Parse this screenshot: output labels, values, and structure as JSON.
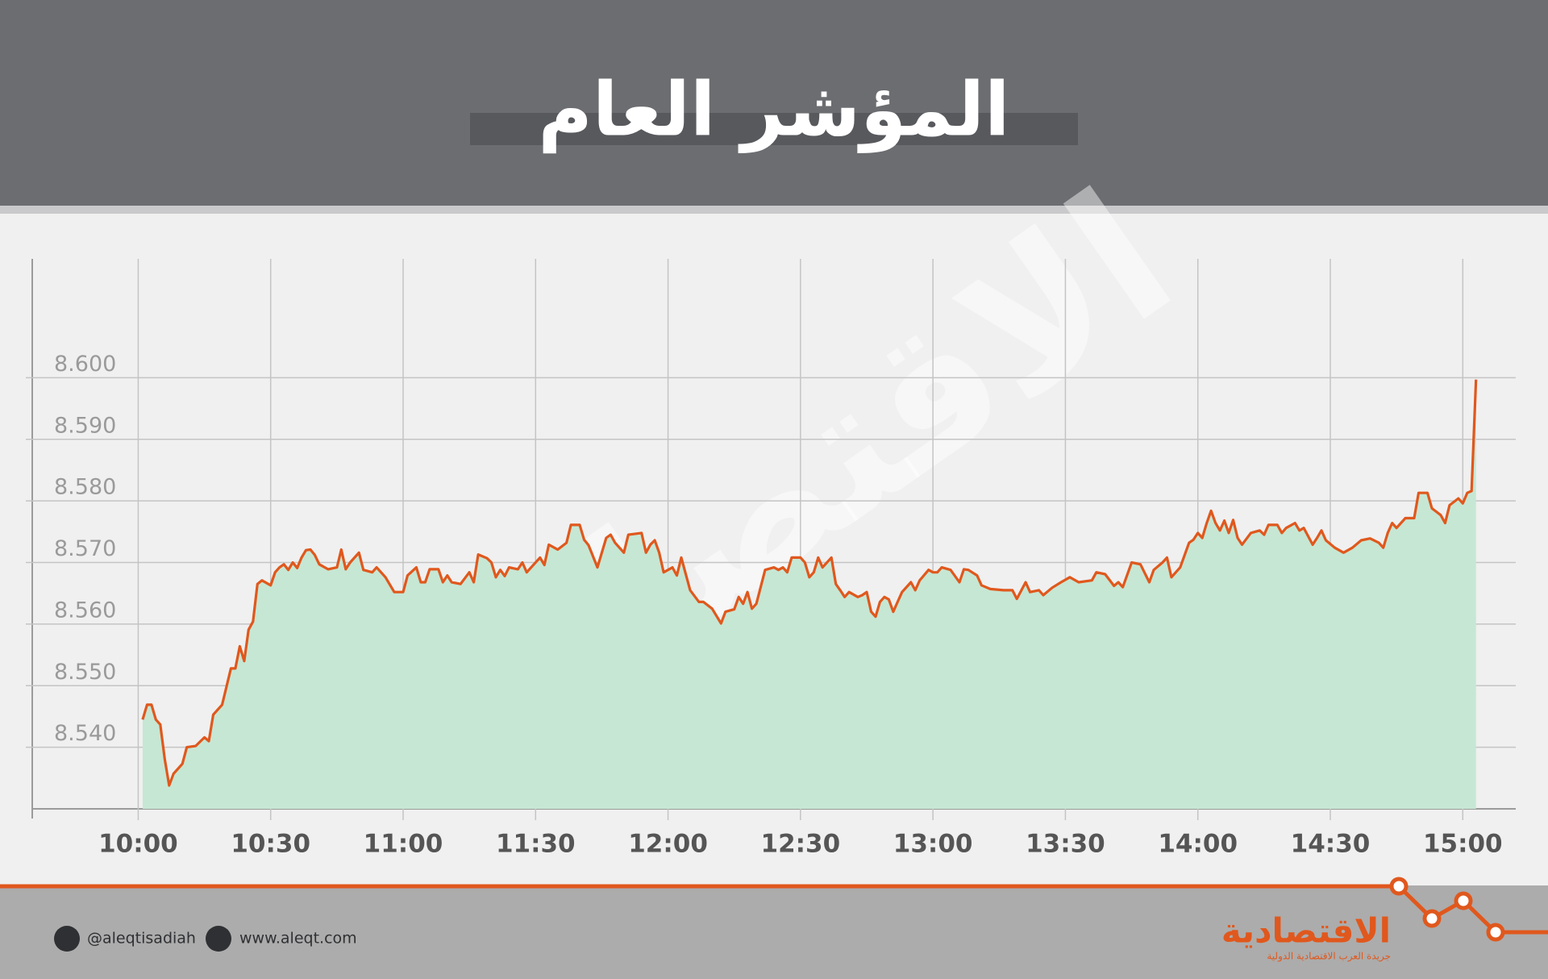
{
  "chart_data": {
    "type": "area",
    "title": "المؤشر العام",
    "color": "#e0581d",
    "fill": "#c6e7d4",
    "grid": true,
    "xlim": [
      "09:36",
      "15:12"
    ],
    "xticks": [
      "10:00",
      "10:30",
      "11:00",
      "11:30",
      "12:00",
      "12:30",
      "13:00",
      "13:30",
      "14:00",
      "14:30",
      "15:00"
    ],
    "ylim": [
      8.53,
      8.6193
    ],
    "yticks": [
      {
        "value": 8.54,
        "label": "8.540"
      },
      {
        "value": 8.55,
        "label": "8.550"
      },
      {
        "value": 8.56,
        "label": "8.560"
      },
      {
        "value": 8.57,
        "label": "8.570"
      },
      {
        "value": 8.58,
        "label": "8.580"
      },
      {
        "value": 8.59,
        "label": "8.590"
      },
      {
        "value": 8.6,
        "label": "8.600"
      }
    ],
    "x": [
      "10:01",
      "10:02",
      "10:03",
      "10:04",
      "10:05",
      "10:06",
      "10:07",
      "10:08",
      "10:10",
      "10:11",
      "10:13",
      "10:15",
      "10:16",
      "10:17",
      "10:19",
      "10:21",
      "10:22",
      "10:23",
      "10:24",
      "10:25",
      "10:26",
      "10:27",
      "10:28",
      "10:30",
      "10:31",
      "10:32",
      "10:33",
      "10:34",
      "10:35",
      "10:36",
      "10:37",
      "10:38",
      "10:39",
      "10:40",
      "10:41",
      "10:43",
      "10:45",
      "10:46",
      "10:47",
      "10:48",
      "10:50",
      "10:51",
      "10:53",
      "10:54",
      "10:56",
      "10:58",
      "11:00",
      "11:01",
      "11:03",
      "11:04",
      "11:05",
      "11:06",
      "11:08",
      "11:09",
      "11:10",
      "11:11",
      "11:13",
      "11:15",
      "11:16",
      "11:17",
      "11:19",
      "11:20",
      "11:21",
      "11:22",
      "11:23",
      "11:24",
      "11:26",
      "11:27",
      "11:28",
      "11:29",
      "11:31",
      "11:32",
      "11:33",
      "11:35",
      "11:37",
      "11:38",
      "11:40",
      "11:41",
      "11:42",
      "11:44",
      "11:46",
      "11:47",
      "11:48",
      "11:50",
      "11:51",
      "11:54",
      "11:55",
      "11:56",
      "11:57",
      "11:58",
      "11:59",
      "12:00",
      "12:01",
      "12:02",
      "12:03",
      "12:05",
      "12:07",
      "12:08",
      "12:10",
      "12:12",
      "12:13",
      "12:15",
      "12:16",
      "12:17",
      "12:18",
      "12:19",
      "12:20",
      "12:22",
      "12:24",
      "12:25",
      "12:26",
      "12:27",
      "12:28",
      "12:30",
      "12:31",
      "12:32",
      "12:33",
      "12:34",
      "12:35",
      "12:37",
      "12:38",
      "12:39",
      "12:40",
      "12:41",
      "12:43",
      "12:44",
      "12:45",
      "12:46",
      "12:47",
      "12:48",
      "12:49",
      "12:50",
      "12:51",
      "12:52",
      "12:53",
      "12:55",
      "12:56",
      "12:57",
      "12:59",
      "13:00",
      "13:01",
      "13:02",
      "13:04",
      "13:06",
      "13:07",
      "13:08",
      "13:10",
      "13:11",
      "13:13",
      "13:16",
      "13:18",
      "13:19",
      "13:21",
      "13:22",
      "13:24",
      "13:25",
      "13:27",
      "13:29",
      "13:31",
      "13:33",
      "13:36",
      "13:37",
      "13:39",
      "13:41",
      "13:42",
      "13:43",
      "13:45",
      "13:47",
      "13:49",
      "13:50",
      "13:52",
      "13:53",
      "13:54",
      "13:56",
      "13:58",
      "13:59",
      "14:00",
      "14:01",
      "14:02",
      "14:03",
      "14:04",
      "14:05",
      "14:06",
      "14:07",
      "14:08",
      "14:09",
      "14:10",
      "14:12",
      "14:14",
      "14:15",
      "14:16",
      "14:18",
      "14:19",
      "14:20",
      "14:22",
      "14:23",
      "14:24",
      "14:26",
      "14:27",
      "14:28",
      "14:29",
      "14:31",
      "14:33",
      "14:35",
      "14:37",
      "14:39",
      "14:41",
      "14:42",
      "14:43",
      "14:44",
      "14:45",
      "14:47",
      "14:49",
      "14:50",
      "14:52",
      "14:53",
      "14:55",
      "14:56",
      "14:57",
      "14:59",
      "15:00",
      "15:01",
      "15:02",
      "15:03"
    ],
    "values": [
      8.5445,
      8.5469,
      8.5469,
      8.5445,
      8.5437,
      8.5381,
      8.5338,
      8.5357,
      8.5373,
      8.54,
      8.5402,
      8.5416,
      8.541,
      8.5453,
      8.5469,
      8.5528,
      8.5528,
      8.5564,
      8.554,
      8.5591,
      8.5604,
      8.5665,
      8.5671,
      8.5663,
      8.5684,
      8.5692,
      8.5697,
      8.5688,
      8.57,
      8.5691,
      8.5708,
      8.572,
      8.5721,
      8.5712,
      8.5697,
      8.5689,
      8.5692,
      8.5721,
      8.5689,
      8.57,
      8.5716,
      8.5688,
      8.5684,
      8.5692,
      8.5676,
      8.5652,
      8.5652,
      8.5679,
      8.5692,
      8.5668,
      8.5668,
      8.5689,
      8.5689,
      8.5668,
      8.5679,
      8.5668,
      8.5665,
      8.5684,
      8.5668,
      8.5713,
      8.5707,
      8.57,
      8.5676,
      8.5688,
      8.5678,
      8.5692,
      8.5689,
      8.57,
      8.5684,
      8.5692,
      8.5708,
      8.5696,
      8.5729,
      8.5721,
      8.5732,
      8.5761,
      8.5761,
      8.5737,
      8.5728,
      8.5692,
      8.574,
      8.5745,
      8.5732,
      8.5716,
      8.5745,
      8.5748,
      8.5716,
      8.5729,
      8.5736,
      8.5716,
      8.5684,
      8.5688,
      8.5692,
      8.5679,
      8.5708,
      8.5655,
      8.5636,
      8.5636,
      8.5625,
      8.5601,
      8.562,
      8.5624,
      8.5644,
      8.5633,
      8.5652,
      8.5625,
      8.5633,
      8.5688,
      8.5692,
      8.5688,
      8.5692,
      8.5684,
      8.5708,
      8.5708,
      8.57,
      8.5676,
      8.5684,
      8.5708,
      8.5692,
      8.5708,
      8.5665,
      8.5655,
      8.5644,
      8.5652,
      8.5644,
      8.5647,
      8.5652,
      8.562,
      8.5612,
      8.5636,
      8.5644,
      8.564,
      8.562,
      8.5636,
      8.5652,
      8.5668,
      8.5655,
      8.5671,
      8.5688,
      8.5684,
      8.5684,
      8.5692,
      8.5688,
      8.5668,
      8.5689,
      8.5688,
      8.5679,
      8.5663,
      8.5657,
      8.5655,
      8.5655,
      8.5641,
      8.5668,
      8.5652,
      8.5655,
      8.5647,
      8.5659,
      8.5668,
      8.5676,
      8.5668,
      8.5671,
      8.5684,
      8.5681,
      8.5662,
      8.5668,
      8.566,
      8.57,
      8.5697,
      8.5668,
      8.5688,
      8.57,
      8.5708,
      8.5676,
      8.5692,
      8.5732,
      8.5737,
      8.5748,
      8.574,
      8.5764,
      8.5784,
      8.5764,
      8.5752,
      8.5768,
      8.5748,
      8.5769,
      8.574,
      8.5729,
      8.5748,
      8.5752,
      8.5745,
      8.5761,
      8.5761,
      8.5748,
      8.5756,
      8.5764,
      8.5752,
      8.5756,
      8.5729,
      8.574,
      8.5752,
      8.5736,
      8.5724,
      8.5716,
      8.5724,
      8.5736,
      8.5739,
      8.5732,
      8.5724,
      8.5748,
      8.5764,
      8.5756,
      8.5772,
      8.5772,
      8.5813,
      8.5813,
      8.5788,
      8.5777,
      8.5764,
      8.5793,
      8.5804,
      8.5796,
      8.5813,
      8.5816,
      8.5997
    ]
  },
  "footer": {
    "twitter": "@aleqtisadiah",
    "website": "www.aleqt.com",
    "brand": "الاقتصادية",
    "tagline": "جريدة العرب الاقتصادية الدولية"
  }
}
